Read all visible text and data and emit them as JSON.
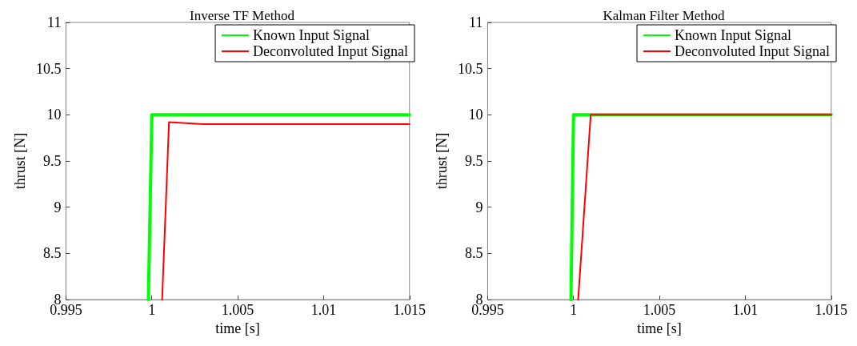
{
  "chart_data": [
    {
      "type": "line",
      "title": "Inverse TF Method",
      "xlabel": "time [s]",
      "ylabel": "thrust [N]",
      "xlim": [
        0.995,
        1.015
      ],
      "xticks": [
        0.995,
        1,
        1.005,
        1.01,
        1.015
      ],
      "ylim": [
        8,
        11
      ],
      "yticks": [
        8,
        8.5,
        9,
        9.5,
        10,
        10.5,
        11
      ],
      "grid": false,
      "legend": "top right",
      "marker": "none",
      "line_style": "solid",
      "series": [
        {
          "name": "Known Input Signal",
          "color": "#00ff00",
          "x": [
            0.9998,
            1.0,
            1.015
          ],
          "values": [
            8,
            10,
            10
          ]
        },
        {
          "name": "Deconvoluted Input Signal",
          "color": "#ff0000",
          "x": [
            1.0006,
            1.001,
            1.003,
            1.015
          ],
          "values": [
            8,
            9.92,
            9.9,
            9.9
          ]
        }
      ]
    },
    {
      "type": "line",
      "title": "Kalman Filter Method",
      "xlabel": "time [s]",
      "ylabel": "thrust [N]",
      "xlim": [
        0.995,
        1.015
      ],
      "xticks": [
        0.995,
        1,
        1.005,
        1.01,
        1.015
      ],
      "ylim": [
        8,
        11
      ],
      "yticks": [
        8,
        8.5,
        9,
        9.5,
        10,
        10.5,
        11
      ],
      "grid": false,
      "legend": "top right",
      "marker": "none",
      "line_style": "solid",
      "series": [
        {
          "name": "Known Input Signal",
          "color": "#00ff00",
          "x": [
            0.99985,
            1.0,
            1.015
          ],
          "values": [
            8,
            10,
            10
          ]
        },
        {
          "name": "Deconvoluted Input Signal",
          "color": "#ff0000",
          "x": [
            1.00027,
            1.001,
            1.015
          ],
          "values": [
            8,
            10,
            10
          ]
        }
      ]
    }
  ]
}
